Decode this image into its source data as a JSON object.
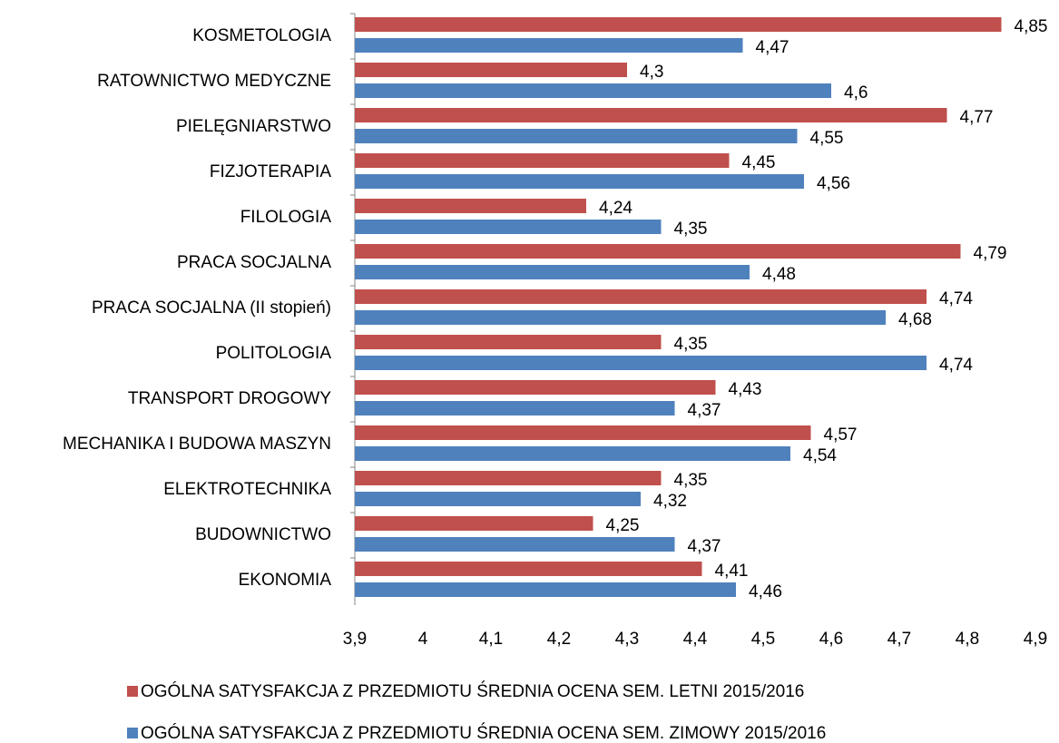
{
  "chart_data": {
    "type": "hbar",
    "categories": [
      "KOSMETOLOGIA",
      "RATOWNICTWO MEDYCZNE",
      "PIELĘGNIARSTWO",
      "FIZJOTERAPIA",
      "FILOLOGIA",
      "PRACA SOCJALNA",
      "PRACA SOCJALNA (II stopień)",
      "POLITOLOGIA",
      "TRANSPORT DROGOWY",
      "MECHANIKA I BUDOWA MASZYN",
      "ELEKTROTECHNIKA",
      "BUDOWNICTWO",
      "EKONOMIA"
    ],
    "series": [
      {
        "name": "OGÓLNA SATYSFAKCJA Z PRZEDMIOTU ŚREDNIA OCENA SEM. LETNI 2015/2016",
        "color": "#c0504d",
        "values": [
          4.85,
          4.3,
          4.77,
          4.45,
          4.24,
          4.79,
          4.74,
          4.35,
          4.43,
          4.57,
          4.35,
          4.25,
          4.41
        ],
        "value_labels": [
          "4,85",
          "4,3",
          "4,77",
          "4,45",
          "4,24",
          "4,79",
          "4,74",
          "4,35",
          "4,43",
          "4,57",
          "4,35",
          "4,25",
          "4,41"
        ]
      },
      {
        "name": "OGÓLNA SATYSFAKCJA Z PRZEDMIOTU ŚREDNIA OCENA SEM. ZIMOWY 2015/2016",
        "color": "#4f81bd",
        "values": [
          4.47,
          4.6,
          4.55,
          4.56,
          4.35,
          4.48,
          4.68,
          4.74,
          4.37,
          4.54,
          4.32,
          4.37,
          4.46
        ],
        "value_labels": [
          "4,47",
          "4,6",
          "4,55",
          "4,56",
          "4,35",
          "4,48",
          "4,68",
          "4,74",
          "4,37",
          "4,54",
          "4,32",
          "4,37",
          "4,46"
        ]
      }
    ],
    "xlim": [
      3.9,
      4.9
    ],
    "xticks": [
      {
        "value": 3.9,
        "label": "3,9"
      },
      4,
      {
        "value": 4.1,
        "label": "4,1"
      },
      {
        "value": 4.2,
        "label": "4,2"
      },
      {
        "value": 4.3,
        "label": "4,3"
      },
      {
        "value": 4.4,
        "label": "4,4"
      },
      {
        "value": 4.5,
        "label": "4,5"
      },
      {
        "value": 4.6,
        "label": "4,6"
      },
      {
        "value": 4.7,
        "label": "4,7"
      },
      {
        "value": 4.8,
        "label": "4,8"
      },
      {
        "value": 4.9,
        "label": "4,9"
      }
    ],
    "grid": false
  }
}
